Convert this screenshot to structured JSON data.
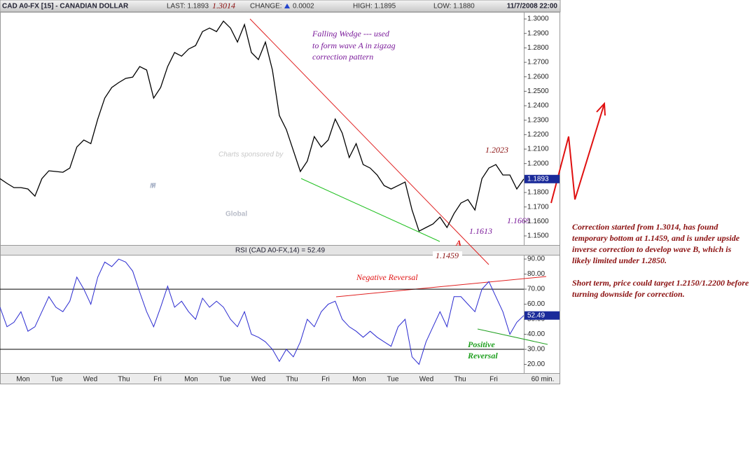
{
  "header": {
    "title": "CAD A0-FX [15] - CANADIAN DOLLAR",
    "last": "LAST: 1.1893",
    "change_label": "CHANGE:",
    "change": "0.0002",
    "high": "HIGH: 1.1895",
    "low": "LOW: 1.1880",
    "datetime": "11/7/2008 22:00"
  },
  "x_axis": {
    "labels": [
      "Mon",
      "Tue",
      "Wed",
      "Thu",
      "Fri",
      "Mon",
      "Tue",
      "Wed",
      "Thu",
      "Fri",
      "Mon",
      "Tue",
      "Wed",
      "Thu",
      "Fri"
    ],
    "interval": "60 min."
  },
  "chart_data": [
    {
      "type": "line",
      "color": "#000000",
      "last_value_label": "1.1893",
      "ylim": [
        1.1437,
        1.3044
      ],
      "yticks": [
        {
          "value": 1.15,
          "label": "1.1500"
        },
        {
          "value": 1.16,
          "label": "1.1600"
        },
        {
          "value": 1.17,
          "label": "1.1700"
        },
        {
          "value": 1.18,
          "label": "1.1800"
        },
        {
          "value": 1.19,
          "label": "1.1900"
        },
        {
          "value": 1.2,
          "label": "1.2000"
        },
        {
          "value": 1.21,
          "label": "1.2100"
        },
        {
          "value": 1.22,
          "label": "1.2200"
        },
        {
          "value": 1.23,
          "label": "1.2300"
        },
        {
          "value": 1.24,
          "label": "1.2400"
        },
        {
          "value": 1.25,
          "label": "1.2500"
        },
        {
          "value": 1.26,
          "label": "1.2600"
        },
        {
          "value": 1.27,
          "label": "1.2700"
        },
        {
          "value": 1.28,
          "label": "1.2800"
        },
        {
          "value": 1.29,
          "label": "1.2900"
        },
        {
          "value": 1.3,
          "label": "1.3000"
        }
      ],
      "values": [
        1.1896,
        1.1863,
        1.1834,
        1.1834,
        1.1824,
        1.1775,
        1.1896,
        1.195,
        1.1945,
        1.194,
        1.1969,
        1.2114,
        1.2163,
        1.2138,
        1.2308,
        1.2453,
        1.2526,
        1.256,
        1.2589,
        1.2598,
        1.2671,
        1.2647,
        1.2453,
        1.2526,
        1.2671,
        1.2768,
        1.2743,
        1.2792,
        1.2816,
        1.2913,
        1.2937,
        1.2913,
        1.2985,
        1.2937,
        1.284,
        1.2961,
        1.2768,
        1.2719,
        1.284,
        1.2647,
        1.2332,
        1.2235,
        1.209,
        1.1945,
        1.2017,
        1.2187,
        1.2114,
        1.2163,
        1.2308,
        1.2211,
        1.2042,
        1.2138,
        1.1993,
        1.1969,
        1.1921,
        1.1848,
        1.1824,
        1.1848,
        1.1872,
        1.1679,
        1.1533,
        1.1558,
        1.1582,
        1.163,
        1.1558,
        1.1654,
        1.1727,
        1.1751,
        1.1679,
        1.1896,
        1.1969,
        1.1993,
        1.1921,
        1.1921,
        1.1824,
        1.1893
      ],
      "annotations": {
        "high": "1.3014",
        "wedge": [
          "Falling Wedge --- used",
          "to form wave A in zigzag",
          "correction pattern"
        ],
        "peak": "1.2023",
        "low1": "1.1613",
        "low2": "1.1669",
        "bottom": "1.1459",
        "wave": "A",
        "sponsor": "Charts sponsored by",
        "watermark": [
          "MF",
          "Global"
        ]
      }
    },
    {
      "type": "line",
      "color": "#2a2ad0",
      "title": "RSI (CAD A0-FX,14) = 52.49",
      "last_value_label": "52.49",
      "ylim": [
        14.2,
        91.9
      ],
      "yticks": [
        {
          "value": 20,
          "label": "20.00"
        },
        {
          "value": 30,
          "label": "30.00"
        },
        {
          "value": 40,
          "label": "40.00"
        },
        {
          "value": 50,
          "label": "50.00"
        },
        {
          "value": 60,
          "label": "60.00"
        },
        {
          "value": 70,
          "label": "70.00"
        },
        {
          "value": 80,
          "label": "80.00"
        },
        {
          "value": 90,
          "label": "90.00"
        }
      ],
      "levels": [
        70,
        30
      ],
      "values": [
        58,
        45,
        48,
        55,
        42,
        45,
        55,
        65,
        58,
        55,
        62,
        78,
        70,
        60,
        78,
        88,
        85,
        90,
        88,
        82,
        68,
        55,
        45,
        58,
        72,
        58,
        62,
        55,
        50,
        64,
        58,
        62,
        58,
        50,
        45,
        55,
        40,
        38,
        35,
        30,
        22,
        30,
        25,
        35,
        50,
        45,
        55,
        60,
        62,
        50,
        45,
        42,
        38,
        42,
        38,
        35,
        32,
        45,
        50,
        25,
        20,
        35,
        45,
        55,
        45,
        65,
        65,
        60,
        55,
        70,
        75,
        65,
        55,
        40,
        48,
        52.49
      ],
      "annotations": {
        "negative": "Negative Reversal",
        "positive": [
          "Positive",
          "Reversal"
        ]
      }
    }
  ],
  "commentary": [
    "Correction started from 1.3014, has found temporary bottom at 1.1459, and  is under upside inverse correction to develop wave B, which is likely limited under 1.2850.",
    "Short term, price could target 1.2150/1.2200 before turning downside for correction."
  ]
}
